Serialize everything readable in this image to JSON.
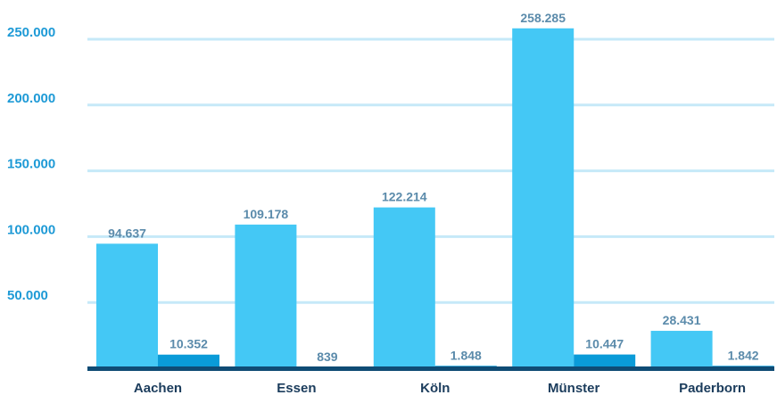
{
  "chart_data": {
    "type": "bar",
    "categories": [
      "Aachen",
      "Essen",
      "Köln",
      "Münster",
      "Paderborn"
    ],
    "series": [
      {
        "values": [
          94637,
          109178,
          122214,
          258285,
          28431
        ],
        "labels": [
          "94.637",
          "109.178",
          "122.214",
          "258.285",
          "28.431"
        ]
      },
      {
        "values": [
          10352,
          839,
          1848,
          10447,
          1842
        ],
        "labels": [
          "10.352",
          "839",
          "1.848",
          "10.447",
          "1.842"
        ]
      }
    ],
    "yticks": [
      50000,
      100000,
      150000,
      200000,
      250000
    ],
    "ytick_labels": [
      "50.000",
      "100.000",
      "150.000",
      "200.000",
      "250.000"
    ],
    "ylim": [
      0,
      270000
    ],
    "grid": true,
    "legend": "none",
    "colors": {
      "series1": "#44c8f5",
      "series2": "#0a9bd8",
      "grid": "#c6e9f8",
      "tick_text": "#1e9ad6",
      "value_text": "#5b8bab",
      "category_text": "#1b3c5c",
      "baseline": "#0f4b74"
    }
  }
}
